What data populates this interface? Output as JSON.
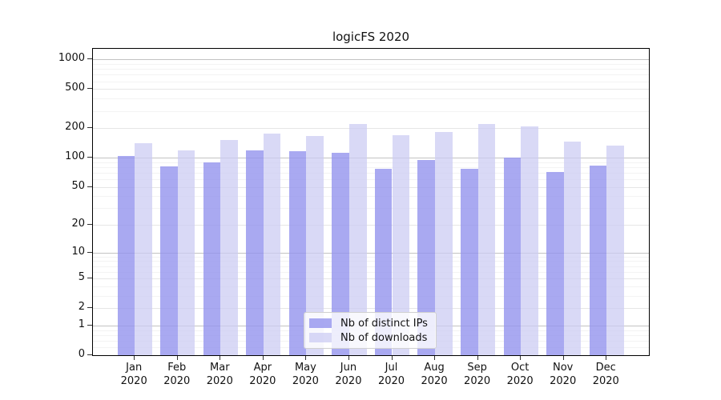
{
  "chart_data": {
    "type": "bar",
    "title": "logicFS 2020",
    "categories": [
      "Jan",
      "Feb",
      "Mar",
      "Apr",
      "May",
      "Jun",
      "Jul",
      "Aug",
      "Sep",
      "Oct",
      "Nov",
      "Dec"
    ],
    "x_year_sublabel": "2020",
    "series": [
      {
        "name": "Nb of distinct IPs",
        "color": "rgba(148,148,238,0.8)",
        "values": [
          104,
          81,
          90,
          118,
          116,
          112,
          77,
          94,
          77,
          101,
          71,
          83
        ]
      },
      {
        "name": "Nb of downloads",
        "color": "rgba(204,204,243,0.75)",
        "values": [
          140,
          119,
          152,
          178,
          168,
          219,
          169,
          184,
          219,
          207,
          145,
          133
        ]
      }
    ],
    "yscale": "log1p",
    "yticks": [
      0,
      1,
      2,
      5,
      10,
      20,
      50,
      100,
      200,
      500,
      1000
    ],
    "ylim": [
      0,
      1285
    ],
    "xlabel": "",
    "ylabel": "",
    "grid": true,
    "legend_position": "lower-center-inside"
  }
}
